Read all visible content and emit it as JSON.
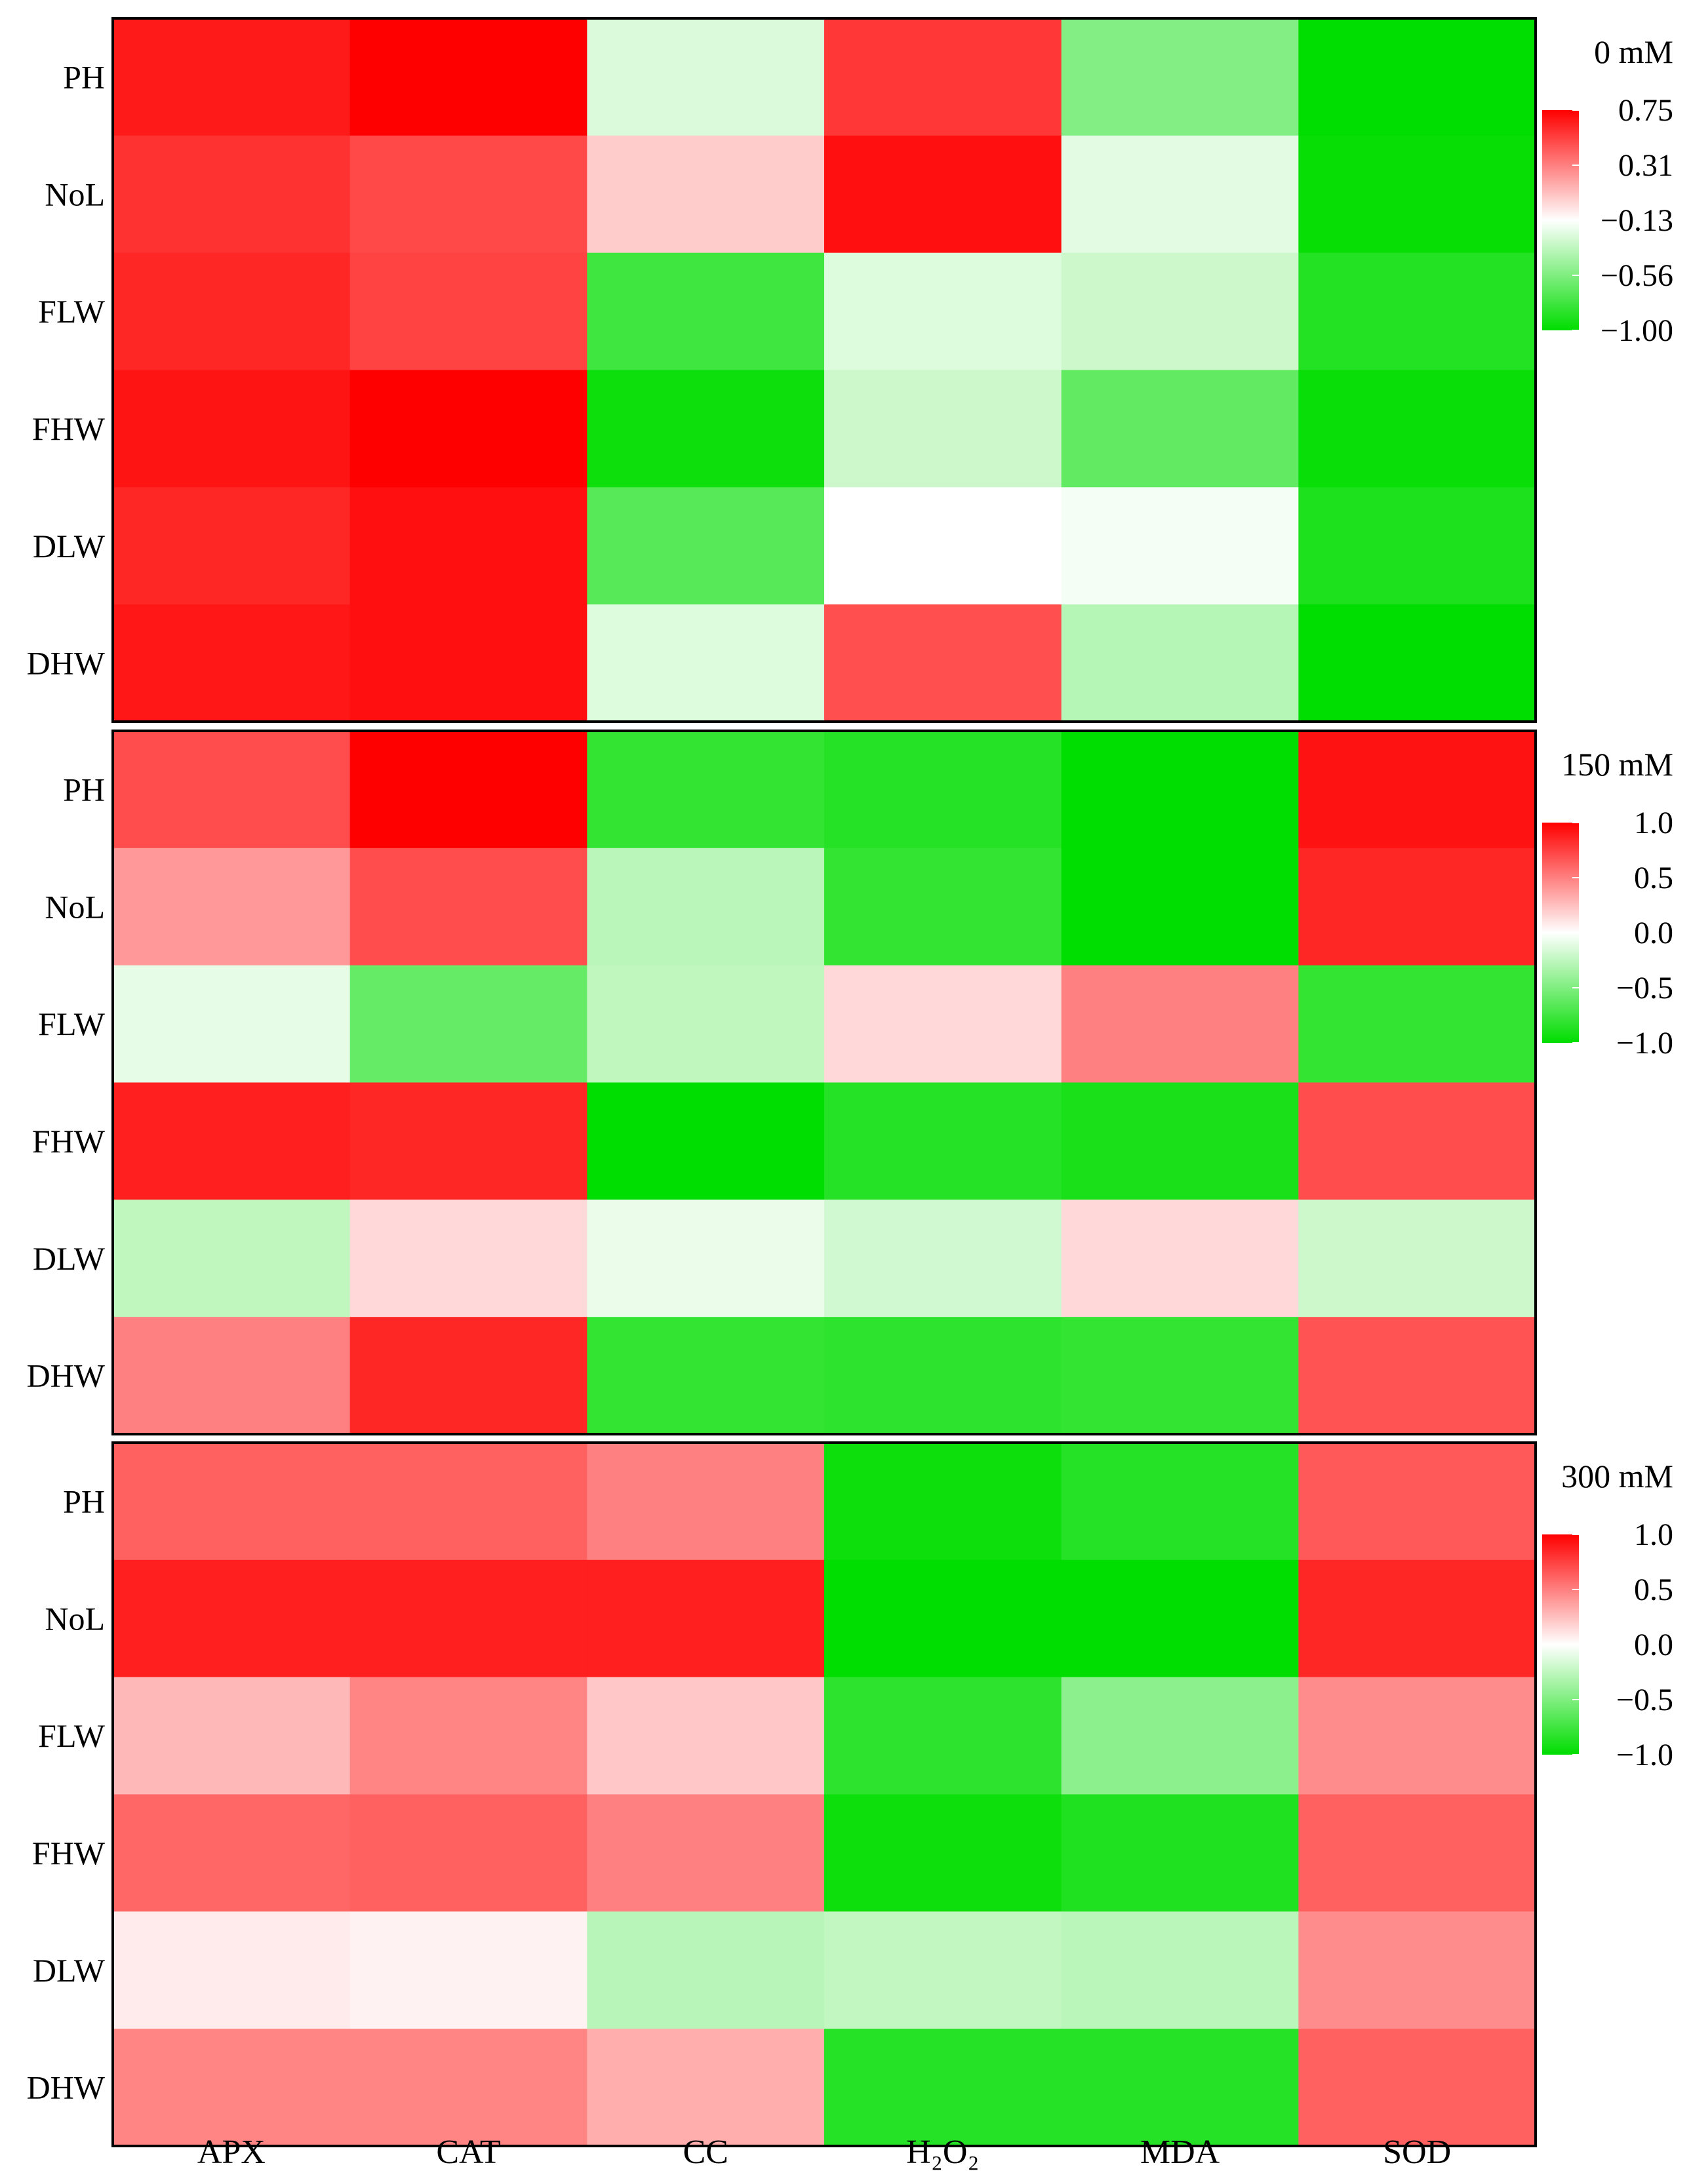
{
  "chart_data": [
    {
      "type": "heatmap",
      "title": "0 mM",
      "rows": [
        "PH",
        "NoL",
        "FLW",
        "FHW",
        "DLW",
        "DHW"
      ],
      "columns": [
        "APX",
        "CAT",
        "CC",
        "H₂O₂",
        "MDA",
        "SOD"
      ],
      "values": [
        [
          0.66,
          0.75,
          -0.25,
          0.56,
          -0.55,
          -1.0
        ],
        [
          0.58,
          0.5,
          0.05,
          0.7,
          -0.22,
          -0.98
        ],
        [
          0.62,
          0.52,
          -0.78,
          -0.24,
          -0.3,
          -0.88
        ],
        [
          0.68,
          0.75,
          -0.96,
          -0.3,
          -0.66,
          -0.97
        ],
        [
          0.62,
          0.7,
          -0.7,
          -0.13,
          -0.16,
          -0.9
        ],
        [
          0.67,
          0.7,
          -0.24,
          0.48,
          -0.38,
          -1.0
        ]
      ],
      "colorbar": {
        "min": -1.0,
        "max": 0.75,
        "ticks": [
          "0.75",
          "0.31",
          "−0.13",
          "−0.56",
          "−1.00"
        ]
      },
      "colors": {
        "high": "#ff0000",
        "mid": "#ffffff",
        "low": "#00dd00"
      },
      "grid": false
    },
    {
      "type": "heatmap",
      "title": "150 mM",
      "rows": [
        "PH",
        "NoL",
        "FLW",
        "FHW",
        "DLW",
        "DHW"
      ],
      "columns": [
        "APX",
        "CAT",
        "CC",
        "H₂O₂",
        "MDA",
        "SOD"
      ],
      "values": [
        [
          0.7,
          1.0,
          -0.8,
          -0.85,
          -1.0,
          0.93
        ],
        [
          0.4,
          0.7,
          -0.27,
          -0.8,
          -1.0,
          0.85
        ],
        [
          -0.1,
          -0.6,
          -0.25,
          0.15,
          0.5,
          -0.8
        ],
        [
          0.88,
          0.85,
          -1.0,
          -0.85,
          -0.9,
          0.7
        ],
        [
          -0.25,
          0.15,
          -0.08,
          -0.18,
          0.15,
          -0.2
        ],
        [
          0.5,
          0.85,
          -0.8,
          -0.82,
          -0.8,
          0.68
        ]
      ],
      "colorbar": {
        "min": -1.0,
        "max": 1.0,
        "ticks": [
          "1.0",
          "0.5",
          "0.0",
          "−0.5",
          "−1.0"
        ]
      },
      "colors": {
        "high": "#ff0000",
        "mid": "#ffffff",
        "low": "#00dd00"
      },
      "grid": false
    },
    {
      "type": "heatmap",
      "title": "300 mM",
      "rows": [
        "PH",
        "NoL",
        "FLW",
        "FHW",
        "DLW",
        "DHW"
      ],
      "columns": [
        "APX",
        "CAT",
        "CC",
        "H₂O₂",
        "MDA",
        "SOD"
      ],
      "values": [
        [
          0.62,
          0.62,
          0.5,
          -0.95,
          -0.85,
          0.65
        ],
        [
          0.88,
          0.88,
          0.88,
          -1.0,
          -1.0,
          0.85
        ],
        [
          0.28,
          0.48,
          0.22,
          -0.82,
          -0.45,
          0.45
        ],
        [
          0.6,
          0.62,
          0.5,
          -0.95,
          -0.88,
          0.62
        ],
        [
          0.08,
          0.05,
          -0.28,
          -0.24,
          -0.27,
          0.45
        ],
        [
          0.48,
          0.48,
          0.32,
          -0.85,
          -0.85,
          0.62
        ]
      ],
      "colorbar": {
        "min": -1.0,
        "max": 1.0,
        "ticks": [
          "1.0",
          "0.5",
          "0.0",
          "−0.5",
          "−1.0"
        ]
      },
      "colors": {
        "high": "#ff0000",
        "mid": "#ffffff",
        "low": "#00dd00"
      },
      "grid": false
    }
  ]
}
